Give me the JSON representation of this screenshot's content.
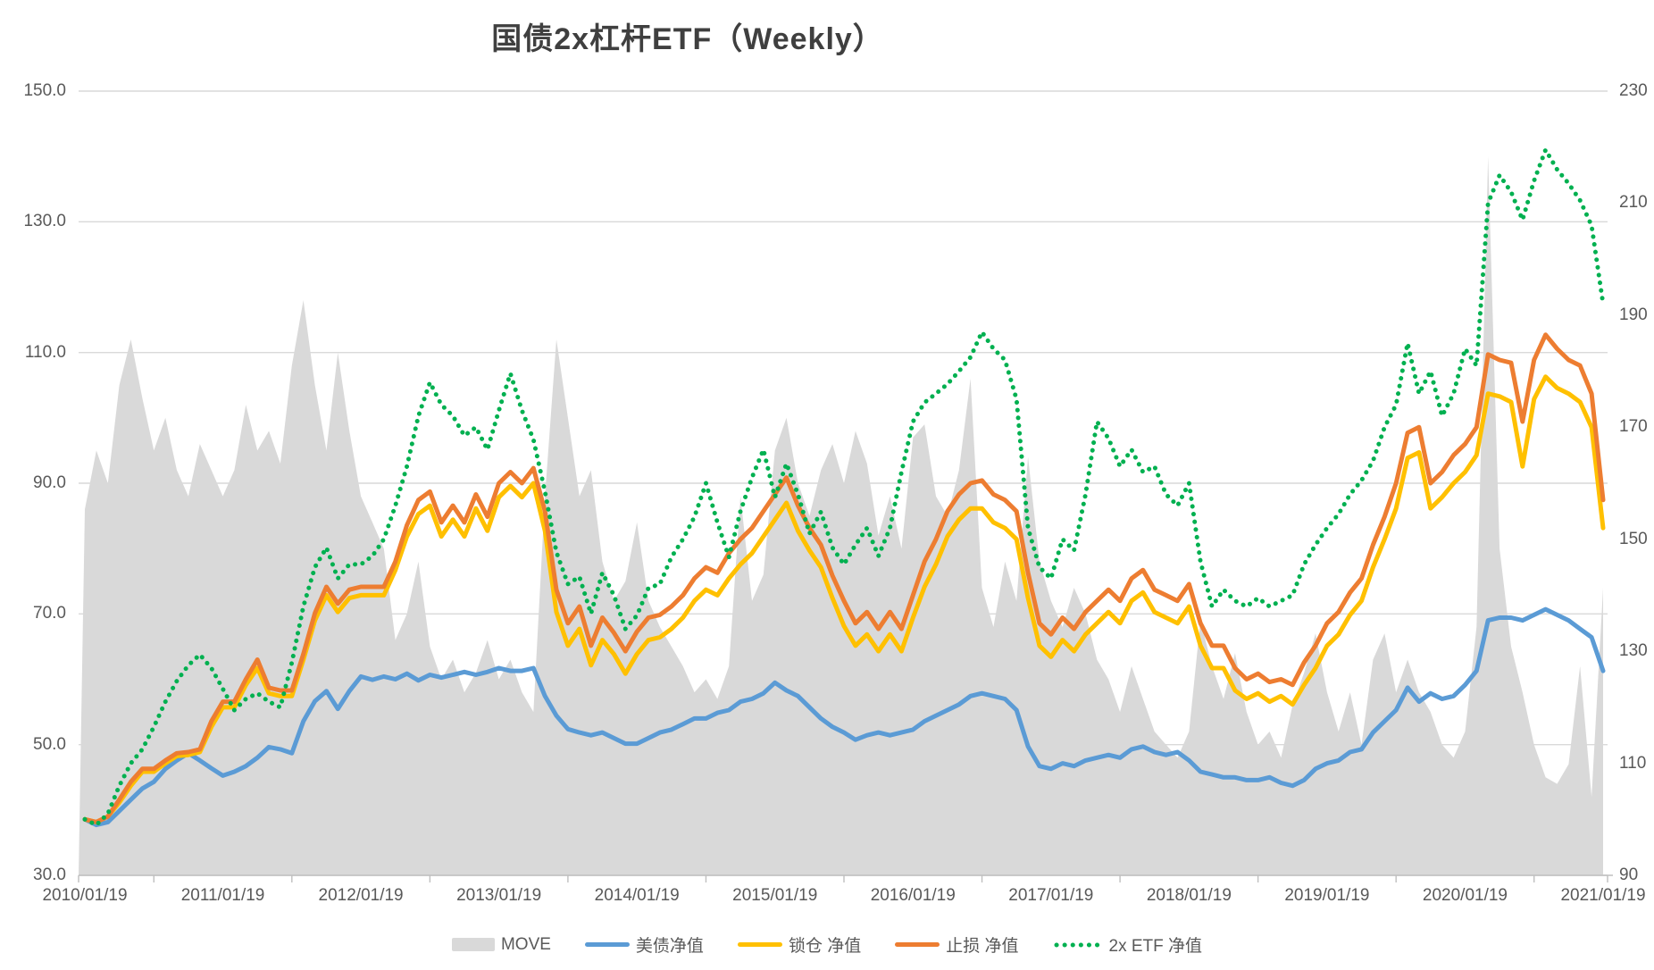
{
  "title": "国债2x杠杆ETF（Weekly）",
  "colors": {
    "background": "#ffffff",
    "title_text": "#3f3f3f",
    "axis_text": "#595959",
    "gridline": "#d9d9d9",
    "axis_line": "#bfbfbf",
    "move_fill": "#d9d9d9",
    "blue": "#5b9bd5",
    "yellow": "#ffc000",
    "orange": "#ed7d31",
    "green": "#00b050"
  },
  "legend": [
    {
      "label": "MOVE",
      "marker": "area",
      "color": "#d9d9d9"
    },
    {
      "label": "美债净值",
      "marker": "line",
      "color": "#5b9bd5"
    },
    {
      "label": "锁仓 净值",
      "marker": "line",
      "color": "#ffc000"
    },
    {
      "label": "止损 净值",
      "marker": "line",
      "color": "#ed7d31"
    },
    {
      "label": "2x ETF 净值",
      "marker": "dots",
      "color": "#00b050"
    }
  ],
  "chart_data": {
    "type": "line",
    "title": "国债2x杠杆ETF（Weekly）",
    "grid": "horizontal",
    "legend_position": "bottom",
    "x_tick_labels": [
      "2010/01/19",
      "2011/01/19",
      "2012/01/19",
      "2013/01/19",
      "2014/01/19",
      "2015/01/19",
      "2016/01/19",
      "2017/01/19",
      "2018/01/19",
      "2019/01/19",
      "2020/01/19",
      "2021/01/19"
    ],
    "left_axis": {
      "ticks": [
        "150.0",
        "130.0",
        "110.0",
        "90.0",
        "70.0",
        "50.0",
        "30.0"
      ],
      "min": 30,
      "max": 150
    },
    "right_axis": {
      "ticks": [
        "230",
        "210",
        "190",
        "170",
        "150",
        "130",
        "110",
        "90"
      ],
      "min": 90,
      "max": 230
    },
    "sampling": "monthly from 2010/01 to 2021/01 (133 points, estimated from weekly chart)",
    "series": [
      {
        "name": "MOVE",
        "axis": "left",
        "style": "area",
        "color": "#d9d9d9",
        "values": [
          86,
          95,
          90,
          105,
          112,
          103,
          95,
          100,
          92,
          88,
          96,
          92,
          88,
          92,
          102,
          95,
          98,
          93,
          108,
          118,
          105,
          95,
          110,
          98,
          88,
          84,
          80,
          66,
          70,
          78,
          65,
          60,
          63,
          58,
          61,
          66,
          60,
          63,
          58,
          55,
          88,
          112,
          100,
          88,
          92,
          78,
          72,
          75,
          84,
          72,
          68,
          65,
          62,
          58,
          60,
          57,
          62,
          88,
          72,
          76,
          95,
          100,
          90,
          85,
          92,
          96,
          90,
          98,
          93,
          82,
          88,
          80,
          97,
          99,
          88,
          85,
          92,
          106,
          74,
          68,
          78,
          72,
          94,
          78,
          72,
          68,
          74,
          70,
          63,
          60,
          55,
          62,
          57,
          52,
          50,
          48,
          52,
          69,
          62,
          57,
          64,
          55,
          50,
          52,
          48,
          56,
          61,
          67,
          58,
          52,
          58,
          50,
          63,
          67,
          58,
          63,
          58,
          55,
          50,
          48,
          52,
          68,
          140,
          80,
          65,
          58,
          50,
          45,
          44,
          47,
          62,
          42,
          74
        ]
      },
      {
        "name": "美债净值",
        "axis": "right",
        "style": "line",
        "color": "#5b9bd5",
        "values": [
          100,
          99,
          99.5,
          101.5,
          103.5,
          105.5,
          106.7,
          109,
          110.5,
          111.8,
          110.5,
          109.1,
          107.8,
          108.5,
          109.5,
          111,
          112.9,
          112.5,
          111.8,
          117.5,
          121.1,
          122.9,
          119.7,
          122.9,
          125.5,
          124.9,
          125.5,
          125,
          126,
          124.8,
          125.8,
          125.3,
          125.8,
          126.3,
          125.8,
          126.3,
          127,
          126.5,
          126.5,
          127,
          122,
          118.5,
          116.1,
          115.5,
          115,
          115.5,
          114.5,
          113.5,
          113.5,
          114.5,
          115.5,
          116,
          117,
          118,
          118,
          119,
          119.5,
          121,
          121.5,
          122.5,
          124.4,
          123,
          122,
          120,
          118,
          116.5,
          115.5,
          114.2,
          115,
          115.5,
          115,
          115.5,
          116,
          117.5,
          118.5,
          119.5,
          120.5,
          122,
          122.5,
          122,
          121.5,
          119.5,
          113,
          109.5,
          109,
          110,
          109.5,
          110.5,
          111,
          111.5,
          111,
          112.5,
          113,
          112,
          111.5,
          112,
          110.5,
          108.5,
          108,
          107.5,
          107.5,
          107,
          107,
          107.5,
          106.5,
          106,
          107,
          109,
          110,
          110.5,
          112,
          112.5,
          115.5,
          117.5,
          119.5,
          123.5,
          121,
          122.5,
          121.5,
          122,
          124,
          126.5,
          135.5,
          136,
          136,
          135.5,
          136.5,
          137.5,
          136.5,
          135.5,
          134,
          132.5,
          126.5
        ]
      },
      {
        "name": "锁仓 净值",
        "axis": "right",
        "style": "line",
        "color": "#ffc000",
        "values": [
          100,
          99.5,
          100.5,
          103,
          106,
          108.5,
          108.5,
          110,
          111.3,
          111.5,
          112,
          116.5,
          120,
          120,
          124,
          127,
          122.5,
          122,
          122,
          128.5,
          135.5,
          140,
          137,
          139.5,
          140,
          140,
          140,
          144.5,
          150.5,
          154.5,
          156,
          150.5,
          153.5,
          150.5,
          155.5,
          151.5,
          157.5,
          159.5,
          157.5,
          160,
          151.5,
          137,
          131,
          134,
          127.5,
          132,
          129.5,
          126,
          129.5,
          132,
          132.5,
          134,
          136,
          139,
          141,
          140,
          143,
          145.5,
          147.5,
          150.5,
          153.5,
          156.5,
          151.5,
          148,
          145,
          139.5,
          134.5,
          131,
          133,
          130,
          133,
          130,
          136,
          141.5,
          145.5,
          150.5,
          153.5,
          155.5,
          155.5,
          153,
          152,
          150,
          139.5,
          131,
          129,
          132,
          130,
          133,
          135,
          137,
          135,
          139,
          140.5,
          137,
          136,
          135,
          138,
          131,
          127,
          127,
          123,
          121.5,
          122.5,
          121,
          122,
          120.5,
          124,
          127,
          131,
          133,
          136.5,
          139,
          145,
          150,
          155.5,
          164.5,
          165.5,
          155.5,
          157.5,
          160,
          162,
          165,
          176,
          175.5,
          174.5,
          163,
          175,
          179,
          177,
          176,
          174.5,
          170,
          152
        ]
      },
      {
        "name": "止损 净值",
        "axis": "right",
        "style": "line",
        "color": "#ed7d31",
        "values": [
          100,
          99.5,
          100.5,
          103.5,
          106.7,
          109,
          109,
          110.5,
          111.8,
          112,
          112.5,
          117.5,
          121,
          121,
          125,
          128.5,
          123.5,
          123,
          123,
          129.5,
          136.8,
          141.5,
          138.5,
          141,
          141.5,
          141.5,
          141.5,
          146,
          152.5,
          157,
          158.5,
          153,
          156,
          153,
          158,
          154,
          160,
          162,
          160,
          162.7,
          155,
          141,
          135,
          138,
          131,
          136,
          133.3,
          130,
          133.5,
          136,
          136.5,
          138,
          140,
          143,
          145,
          144,
          147.5,
          150,
          152,
          155,
          158,
          161,
          156,
          152,
          149,
          143.5,
          139,
          135,
          137,
          134,
          137,
          134,
          140,
          146,
          150,
          155,
          158,
          160,
          160.5,
          158,
          157,
          155,
          144,
          135,
          133,
          136,
          134,
          137,
          139,
          141,
          139,
          143,
          144.5,
          141,
          140,
          139,
          142,
          135,
          131,
          131,
          127,
          125,
          126,
          124.5,
          125,
          124,
          128,
          131,
          135,
          137,
          140.5,
          143,
          149,
          154,
          160,
          169,
          170,
          160,
          162,
          165,
          167,
          170,
          183,
          182,
          181.5,
          171,
          182,
          186.5,
          184,
          182,
          181,
          176,
          157
        ]
      },
      {
        "name": "2x ETF 净值",
        "axis": "right",
        "style": "dotted",
        "color": "#00b050",
        "values": [
          100,
          99,
          101,
          106,
          110,
          112.5,
          116.5,
          121,
          124.7,
          127.5,
          129.4,
          127,
          123.3,
          119.5,
          121.5,
          122.5,
          121,
          120,
          128,
          138,
          145,
          148.5,
          143,
          145.5,
          145.5,
          147,
          150,
          156,
          163,
          172,
          178,
          174,
          172,
          168.5,
          170,
          166,
          173,
          179.6,
          173,
          167.8,
          158.5,
          147.7,
          142,
          143.3,
          136.7,
          144,
          140,
          134,
          136.4,
          141.3,
          142,
          146.8,
          150,
          154,
          160,
          153,
          146.8,
          155,
          161,
          166,
          157.5,
          163.5,
          158,
          151,
          154.9,
          148.5,
          145.5,
          149,
          152,
          147,
          152,
          162,
          171,
          174.4,
          176,
          177.7,
          180,
          182.5,
          187,
          184,
          182,
          175,
          152,
          145,
          143,
          150,
          148,
          158,
          171,
          168,
          163,
          166,
          162,
          163,
          158,
          156,
          160,
          146,
          138,
          141,
          139,
          138,
          139.5,
          138,
          139,
          140,
          145.5,
          149,
          152,
          154.5,
          158,
          160.5,
          164,
          170,
          174,
          185,
          176,
          180,
          172,
          176,
          184,
          181,
          210,
          215,
          212,
          207,
          214,
          219.5,
          216,
          213.5,
          210.5,
          206,
          192
        ]
      }
    ]
  }
}
